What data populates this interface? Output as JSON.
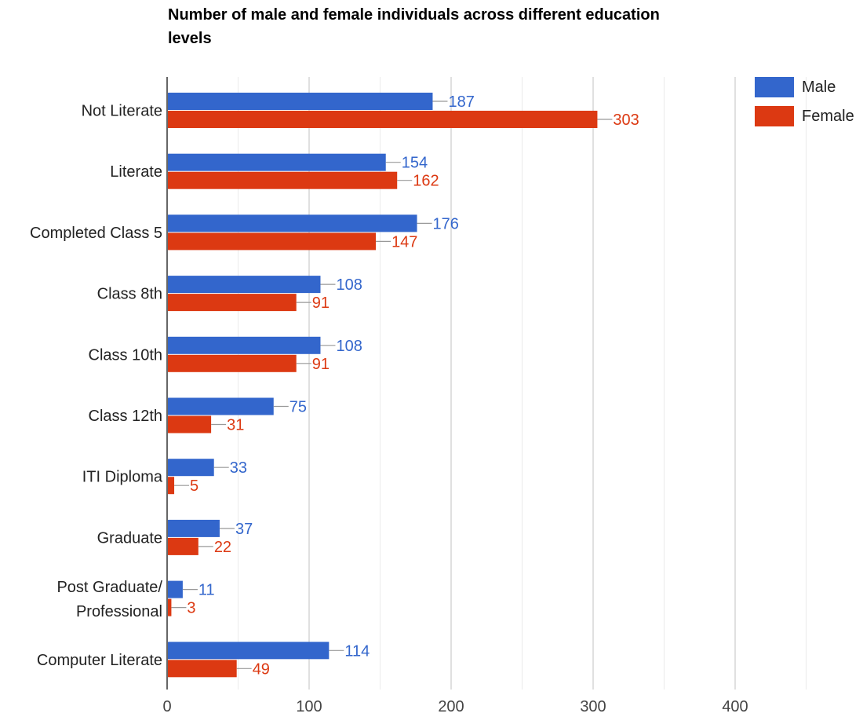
{
  "chart_data": {
    "type": "bar",
    "orientation": "horizontal",
    "title": "Number of male and female individuals across different education levels",
    "xlabel": "",
    "ylabel": "",
    "categories": [
      "Not Literate",
      "Literate",
      "Completed Class 5",
      "Class 8th",
      "Class 10th",
      "Class 12th",
      "ITI Diploma",
      "Graduate",
      "Post Graduate/ Professional",
      "Computer Literate"
    ],
    "series": [
      {
        "name": "Male",
        "color": "#3366cc",
        "values": [
          187,
          154,
          176,
          108,
          108,
          75,
          33,
          37,
          11,
          114
        ]
      },
      {
        "name": "Female",
        "color": "#dc3912",
        "values": [
          303,
          162,
          147,
          91,
          91,
          31,
          5,
          22,
          3,
          49
        ]
      }
    ],
    "xlim": [
      0,
      480
    ],
    "xticks": [
      0,
      100,
      200,
      300,
      400
    ],
    "minor_gridlines": [
      50,
      150,
      250,
      350,
      450
    ],
    "grid": true,
    "data_labels": true,
    "legend_position": "top-right"
  }
}
